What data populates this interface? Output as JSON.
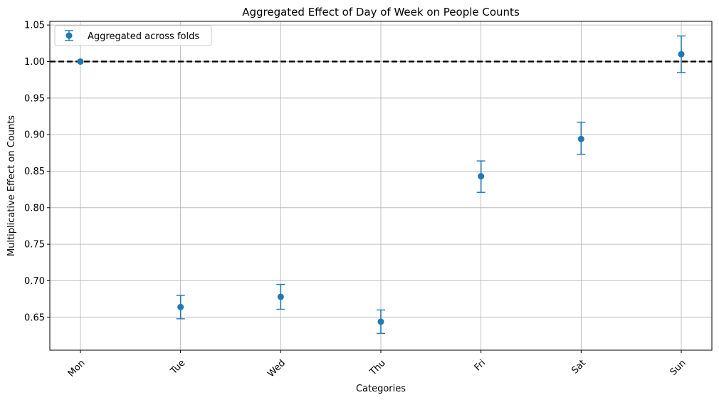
{
  "chart_data": {
    "type": "scatter",
    "title": "Aggregated Effect of Day of Week on People Counts",
    "xlabel": "Categories",
    "ylabel": "Multiplicative Effect on Counts",
    "categories": [
      "Mon",
      "Tue",
      "Wed",
      "Thu",
      "Fri",
      "Sat",
      "Sun"
    ],
    "series": [
      {
        "name": "Aggregated across folds",
        "values": [
          1.0,
          0.664,
          0.678,
          0.644,
          0.843,
          0.894,
          1.01
        ],
        "err_low": [
          1.0,
          0.648,
          0.661,
          0.628,
          0.821,
          0.873,
          0.985
        ],
        "err_high": [
          1.0,
          0.68,
          0.695,
          0.66,
          0.864,
          0.917,
          1.035
        ]
      }
    ],
    "reference_line": {
      "y": 1.0,
      "style": "dashed",
      "color": "#000000"
    },
    "ylim": [
      0.605,
      1.055
    ],
    "yticks": [
      0.65,
      0.7,
      0.75,
      0.8,
      0.85,
      0.9,
      0.95,
      1.0,
      1.05
    ],
    "ytick_labels": [
      "0.65",
      "0.70",
      "0.75",
      "0.80",
      "0.85",
      "0.90",
      "0.95",
      "1.00",
      "1.05"
    ],
    "grid": true,
    "legend_position": "top-left",
    "colors": {
      "series": "#1f77b4",
      "grid": "#b0b0b0",
      "axis": "#000000"
    }
  }
}
